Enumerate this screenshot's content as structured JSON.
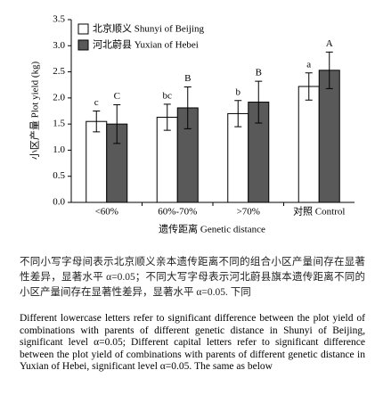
{
  "chart_data": {
    "type": "bar",
    "categories": [
      "<60%",
      "60%-70%",
      ">70%",
      "对照 Control"
    ],
    "series": [
      {
        "name": "北京顺义 Shunyi of Beijing",
        "color": "#ffffff",
        "values": [
          1.55,
          1.63,
          1.7,
          2.22
        ],
        "errors": [
          0.2,
          0.25,
          0.25,
          0.26
        ],
        "letters": [
          "c",
          "bc",
          "b",
          "a"
        ]
      },
      {
        "name": "河北蔚县 Yuxian of Hebei",
        "color": "#595959",
        "values": [
          1.5,
          1.81,
          1.92,
          2.53
        ],
        "errors": [
          0.37,
          0.4,
          0.4,
          0.35
        ],
        "letters": [
          "C",
          "B",
          "B",
          "A"
        ]
      }
    ],
    "xlabel": "遗传距离 Genetic distance",
    "ylabel": "小区产量 Plot yield (kg)",
    "ylim": [
      0,
      3.5
    ],
    "yticks": [
      {
        "value": 0,
        "label": "0.0"
      },
      0.5,
      {
        "value": 1,
        "label": "1.0"
      },
      1.5,
      {
        "value": 2,
        "label": "2.0"
      },
      2.5,
      {
        "value": 3,
        "label": "3.0"
      },
      3.5
    ],
    "legend": "upper left"
  },
  "caption": {
    "zh": "不同小写字母间表示北京顺义亲本遗传距离不同的组合小区产量间存在显著性差异，显著水平 α=0.05；不同大写字母表示河北蔚县旗本遗传距离不同的小区产量间存在显著性差异，显著水平 α=0.05. 下同",
    "en": "Different lowercase letters refer to significant difference between the plot yield of combinations with parents of different genetic distance in Shunyi of Beijing, significant level α=0.05; Different capital letters refer to significant difference between the plot yield of combinations with parents of different genetic distance in Yuxian of Hebei, significant level α=0.05. The same as below"
  }
}
